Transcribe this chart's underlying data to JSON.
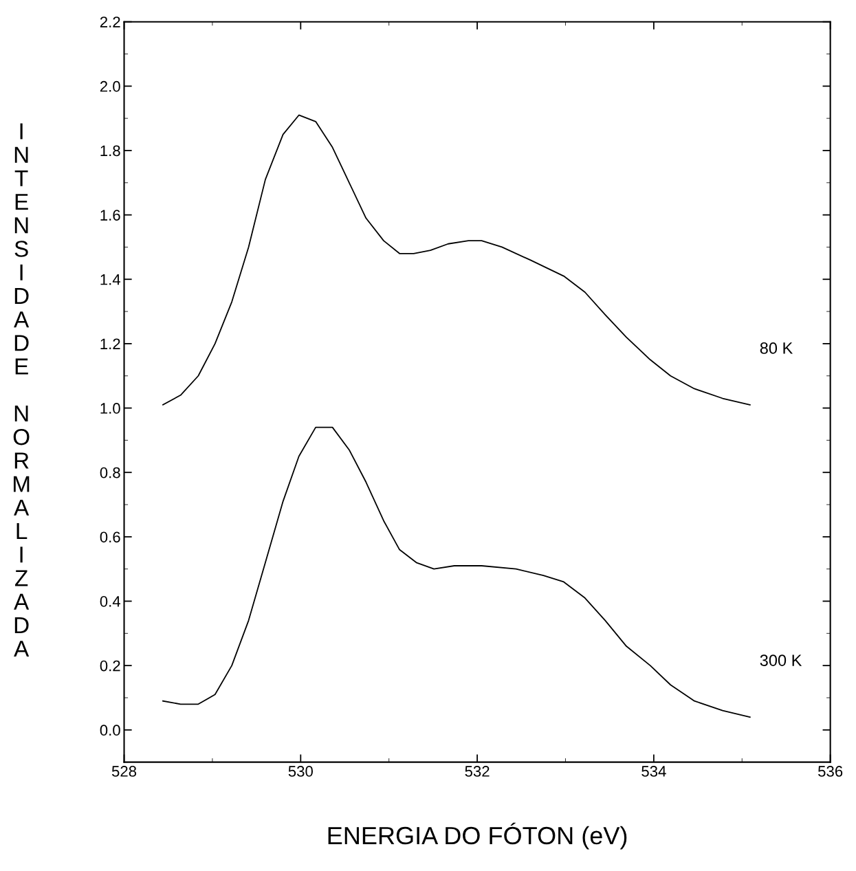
{
  "chart_data": {
    "type": "line",
    "xlabel": "ENERGIA DO FÓTON (eV)",
    "ylabel": "INTENSIDADE NORMALIZADA",
    "xlim": [
      528,
      536
    ],
    "xticks": [
      528,
      530,
      532,
      534,
      536
    ],
    "ylim": [
      -0.1,
      2.2
    ],
    "yticks": [
      {
        "value": 0,
        "label": "0.0"
      },
      {
        "value": 0.2,
        "label": "0.2"
      },
      {
        "value": 0.4,
        "label": "0.4"
      },
      {
        "value": 0.6,
        "label": "0.6"
      },
      {
        "value": 0.8,
        "label": "0.8"
      },
      {
        "value": 1,
        "label": "1.0"
      },
      {
        "value": 1.2,
        "label": "1.2"
      },
      {
        "value": 1.4,
        "label": "1.4"
      },
      {
        "value": 1.6,
        "label": "1.6"
      },
      {
        "value": 1.8,
        "label": "1.8"
      },
      {
        "value": 2,
        "label": "2.0"
      },
      {
        "value": 2.2,
        "label": "2.2"
      }
    ],
    "grid": false,
    "legend": "right",
    "marker": "none",
    "line_style": "solid",
    "series": [
      {
        "name": "80 K",
        "color": "#000000",
        "x": [
          528.44,
          528.64,
          528.84,
          529.03,
          529.22,
          529.41,
          529.6,
          529.8,
          529.98,
          530.17,
          530.36,
          530.55,
          530.74,
          530.94,
          531.12,
          531.28,
          531.47,
          531.67,
          531.9,
          532.05,
          532.28,
          532.6,
          532.98,
          533.22,
          533.45,
          533.69,
          533.96,
          534.19,
          534.46,
          534.78,
          535.09
        ],
        "values": [
          1.01,
          1.04,
          1.1,
          1.2,
          1.33,
          1.5,
          1.71,
          1.85,
          1.91,
          1.89,
          1.81,
          1.7,
          1.59,
          1.52,
          1.48,
          1.48,
          1.49,
          1.51,
          1.52,
          1.52,
          1.5,
          1.46,
          1.41,
          1.36,
          1.29,
          1.22,
          1.15,
          1.1,
          1.06,
          1.03,
          1.01
        ]
      },
      {
        "name": "300 K",
        "color": "#000000",
        "x": [
          528.44,
          528.64,
          528.84,
          529.03,
          529.22,
          529.41,
          529.6,
          529.8,
          529.98,
          530.17,
          530.36,
          530.55,
          530.74,
          530.94,
          531.12,
          531.31,
          531.51,
          531.74,
          532.05,
          532.44,
          532.75,
          532.98,
          533.22,
          533.45,
          533.69,
          533.96,
          534.19,
          534.46,
          534.78,
          535.09
        ],
        "values": [
          0.09,
          0.08,
          0.08,
          0.11,
          0.2,
          0.34,
          0.52,
          0.71,
          0.85,
          0.94,
          0.94,
          0.87,
          0.77,
          0.65,
          0.56,
          0.52,
          0.5,
          0.51,
          0.51,
          0.5,
          0.48,
          0.46,
          0.41,
          0.34,
          0.26,
          0.2,
          0.14,
          0.09,
          0.06,
          0.04
        ]
      }
    ]
  }
}
